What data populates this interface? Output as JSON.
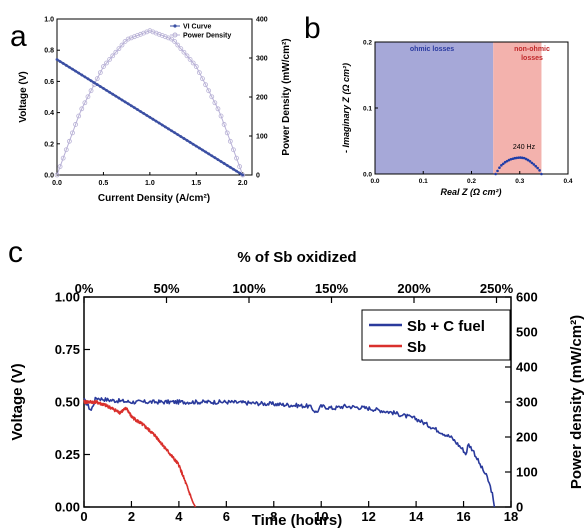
{
  "panel_letters": {
    "a": "a",
    "b": "b",
    "c": "c"
  },
  "colors": {
    "vi_curve": "#3b4fa3",
    "power_density": "#b8b1d6",
    "ohmic_region": "#a6a8d8",
    "nonohmic_region": "#f3b2ad",
    "impedance_points": "#1f3da8",
    "sb_c_fuel": "#2a3a9c",
    "sb": "#d9302c",
    "ohmic_text": "#2a3aa0",
    "nonohmic_text": "#c0282a"
  },
  "chart_data": [
    {
      "id": "a",
      "type": "line",
      "xlabel": "Current Density (A/cm²)",
      "ylabel": "Voltage (V)",
      "y2label": "Power Density (mW/cm²)",
      "xlim": [
        0,
        2.1
      ],
      "ylim": [
        0,
        1.0
      ],
      "y2lim": [
        0,
        400
      ],
      "xticks": [
        "0.0",
        "0.5",
        "1.0",
        "1.5",
        "2.0"
      ],
      "yticks": [
        "0.0",
        "0.2",
        "0.4",
        "0.6",
        "0.8",
        "1.0"
      ],
      "y2ticks": [
        "0",
        "100",
        "200",
        "300",
        "400"
      ],
      "legend": {
        "placement": "top-right",
        "entries": [
          "VI Curve",
          "Power Density"
        ]
      },
      "series": [
        {
          "name": "VI Curve",
          "axis": "left",
          "x": [
            0.0,
            0.5,
            1.0,
            1.5,
            2.0
          ],
          "y": [
            0.74,
            0.555,
            0.37,
            0.185,
            0.0
          ]
        },
        {
          "name": "Power Density",
          "axis": "right",
          "x": [
            0.0,
            0.25,
            0.5,
            0.75,
            1.0,
            1.25,
            1.5,
            1.75,
            2.0
          ],
          "y": [
            0,
            162,
            278,
            347,
            370,
            347,
            278,
            162,
            0
          ]
        }
      ]
    },
    {
      "id": "b",
      "type": "scatter",
      "xlabel": "Real Z (Ω cm²)",
      "ylabel": "- Imaginary Z (Ω cm²)",
      "xlim": [
        0,
        0.4
      ],
      "ylim": [
        0,
        0.2
      ],
      "xticks": [
        "0.0",
        "0.1",
        "0.2",
        "0.3",
        "0.4"
      ],
      "yticks": [
        "0.0",
        "0.1",
        "0.2"
      ],
      "regions": [
        {
          "label": "ohmic losses",
          "x": [
            0,
            0.245
          ]
        },
        {
          "label": "non-ohmic losses",
          "x": [
            0.245,
            0.345
          ]
        }
      ],
      "annotation": "240 Hz",
      "points": {
        "x": [
          0.25,
          0.26,
          0.27,
          0.28,
          0.29,
          0.3,
          0.31,
          0.32,
          0.33,
          0.34,
          0.345
        ],
        "y": [
          0.0,
          0.012,
          0.018,
          0.022,
          0.024,
          0.025,
          0.024,
          0.02,
          0.014,
          0.007,
          0.0
        ]
      }
    },
    {
      "id": "c",
      "type": "line",
      "xlabel": "Time (hours)",
      "ylabel": "Voltage (V)",
      "y2label": "Power density (mW/cm²)",
      "top_xlabel": "% of Sb oxidized",
      "xlim": [
        0,
        18
      ],
      "ylim": [
        0,
        1.0
      ],
      "y2lim": [
        0,
        600
      ],
      "xticks": [
        "0",
        "2",
        "4",
        "6",
        "8",
        "10",
        "12",
        "14",
        "16",
        "18"
      ],
      "yticks": [
        "0.00",
        "0.25",
        "0.50",
        "0.75",
        "1.00"
      ],
      "y2ticks": [
        "0",
        "100",
        "200",
        "300",
        "400",
        "500",
        "600"
      ],
      "top_xticks": [
        "0%",
        "50%",
        "100%",
        "150%",
        "200%",
        "250%"
      ],
      "legend": {
        "placement": "top-right",
        "entries": [
          "Sb + C fuel",
          "Sb"
        ]
      },
      "series": [
        {
          "name": "Sb + C fuel",
          "x": [
            0,
            0.3,
            0.5,
            1,
            2,
            4,
            6,
            8,
            9.5,
            9.8,
            10,
            10.5,
            11,
            12,
            13,
            14,
            14.5,
            15,
            15.5,
            16,
            16.1,
            16.2,
            16.4,
            16.7,
            17,
            17.2,
            17.3
          ],
          "y": [
            0.51,
            0.46,
            0.52,
            0.51,
            0.5,
            0.5,
            0.5,
            0.49,
            0.48,
            0.45,
            0.48,
            0.47,
            0.48,
            0.47,
            0.45,
            0.42,
            0.39,
            0.36,
            0.33,
            0.27,
            0.25,
            0.3,
            0.27,
            0.2,
            0.14,
            0.07,
            0.0
          ]
        },
        {
          "name": "Sb",
          "x": [
            0,
            0.5,
            1,
            1.5,
            1.8,
            2,
            2.5,
            3,
            3.5,
            4,
            4.2,
            4.4,
            4.6,
            4.7
          ],
          "y": [
            0.5,
            0.5,
            0.48,
            0.45,
            0.47,
            0.43,
            0.39,
            0.34,
            0.27,
            0.2,
            0.14,
            0.08,
            0.02,
            0.0
          ]
        }
      ]
    }
  ]
}
